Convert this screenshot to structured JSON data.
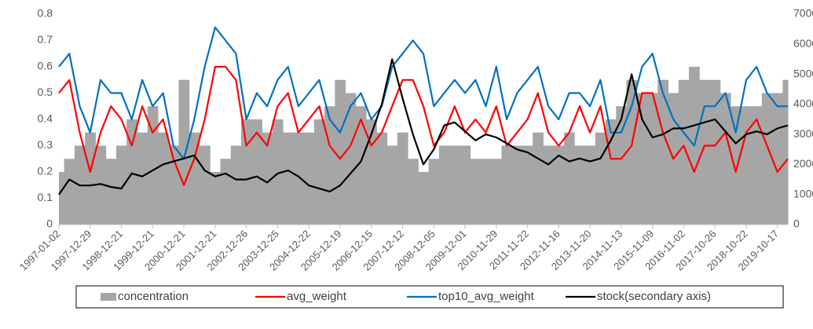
{
  "chart_data": {
    "type": "line",
    "categories": [
      "1997-01-02",
      null,
      null,
      "1997-12-29",
      null,
      null,
      "1998-12-21",
      null,
      null,
      "1999-12-21",
      null,
      null,
      "2000-12-21",
      null,
      null,
      "2001-12-21",
      null,
      null,
      "2002-12-26",
      null,
      null,
      "2003-12-25",
      null,
      null,
      "2004-12-22",
      null,
      null,
      "2005-12-19",
      null,
      null,
      "2006-12-15",
      null,
      null,
      "2007-12-12",
      null,
      null,
      "2008-12-05",
      null,
      null,
      "2009-12-01",
      null,
      null,
      "2010-11-29",
      null,
      null,
      "2011-11-22",
      null,
      null,
      "2012-11-16",
      null,
      null,
      "2013-11-20",
      null,
      null,
      "2014-11-13",
      null,
      null,
      "2015-11-09",
      null,
      null,
      "2016-11-02",
      null,
      null,
      "2017-10-26",
      null,
      null,
      "2018-10-22",
      null,
      null,
      "2019-10-17",
      null
    ],
    "series": [
      {
        "name": "concentration",
        "type": "bar",
        "color": "#a6a6a6",
        "values": [
          0.2,
          0.25,
          0.3,
          0.35,
          0.3,
          0.25,
          0.3,
          0.4,
          0.35,
          0.45,
          0.35,
          0.3,
          0.55,
          0.35,
          0.3,
          0.2,
          0.25,
          0.3,
          0.4,
          0.4,
          0.35,
          0.4,
          0.35,
          0.35,
          0.35,
          0.4,
          0.45,
          0.55,
          0.5,
          0.45,
          0.4,
          0.35,
          0.3,
          0.35,
          0.25,
          0.2,
          0.25,
          0.3,
          0.3,
          0.3,
          0.25,
          0.25,
          0.25,
          0.3,
          0.3,
          0.3,
          0.35,
          0.3,
          0.3,
          0.35,
          0.3,
          0.3,
          0.35,
          0.4,
          0.45,
          0.55,
          0.5,
          0.5,
          0.55,
          0.5,
          0.55,
          0.6,
          0.55,
          0.55,
          0.5,
          0.45,
          0.45,
          0.45,
          0.5,
          0.5,
          0.55
        ]
      },
      {
        "name": "avg_weight",
        "color": "#ff0000",
        "values": [
          0.5,
          0.55,
          0.35,
          0.2,
          0.35,
          0.45,
          0.4,
          0.3,
          0.45,
          0.35,
          0.4,
          0.25,
          0.15,
          0.25,
          0.4,
          0.6,
          0.6,
          0.55,
          0.3,
          0.35,
          0.3,
          0.45,
          0.5,
          0.35,
          0.4,
          0.45,
          0.3,
          0.25,
          0.3,
          0.4,
          0.3,
          0.35,
          0.45,
          0.55,
          0.55,
          0.45,
          0.3,
          0.35,
          0.45,
          0.35,
          0.4,
          0.35,
          0.45,
          0.3,
          0.35,
          0.4,
          0.5,
          0.35,
          0.3,
          0.35,
          0.45,
          0.35,
          0.45,
          0.25,
          0.25,
          0.3,
          0.5,
          0.5,
          0.35,
          0.25,
          0.3,
          0.2,
          0.3,
          0.3,
          0.35,
          0.2,
          0.35,
          0.4,
          0.3,
          0.2,
          0.25
        ]
      },
      {
        "name": "top10_avg_weight",
        "color": "#0070c0",
        "values": [
          0.6,
          0.65,
          0.45,
          0.35,
          0.55,
          0.5,
          0.5,
          0.4,
          0.55,
          0.45,
          0.5,
          0.3,
          0.25,
          0.4,
          0.6,
          0.75,
          0.7,
          0.65,
          0.4,
          0.5,
          0.45,
          0.55,
          0.6,
          0.45,
          0.5,
          0.55,
          0.4,
          0.35,
          0.45,
          0.5,
          0.4,
          0.45,
          0.6,
          0.65,
          0.7,
          0.65,
          0.45,
          0.5,
          0.55,
          0.5,
          0.55,
          0.45,
          0.6,
          0.4,
          0.5,
          0.55,
          0.6,
          0.45,
          0.4,
          0.5,
          0.5,
          0.45,
          0.55,
          0.35,
          0.35,
          0.45,
          0.6,
          0.65,
          0.5,
          0.4,
          0.35,
          0.3,
          0.45,
          0.45,
          0.5,
          0.35,
          0.55,
          0.6,
          0.5,
          0.45,
          0.45
        ]
      },
      {
        "name": "stock(secondary axis)",
        "color": "#000000",
        "axis": "y2",
        "values": [
          1000,
          1500,
          1300,
          1300,
          1350,
          1250,
          1200,
          1700,
          1600,
          1800,
          2000,
          2100,
          2200,
          2300,
          1800,
          1600,
          1700,
          1500,
          1500,
          1600,
          1400,
          1700,
          1800,
          1600,
          1300,
          1200,
          1100,
          1300,
          1700,
          2100,
          3000,
          4000,
          5500,
          4200,
          3000,
          2000,
          2500,
          3300,
          3400,
          3100,
          2800,
          3000,
          2900,
          2700,
          2500,
          2400,
          2200,
          2000,
          2300,
          2100,
          2200,
          2100,
          2200,
          2800,
          3500,
          5000,
          3500,
          2900,
          3000,
          3200,
          3200,
          3300,
          3400,
          3500,
          3100,
          2700,
          3000,
          3100,
          3000,
          3200,
          3300
        ]
      }
    ],
    "ylim": [
      0,
      0.8
    ],
    "yticks": [
      0,
      0.1,
      0.2,
      0.3,
      0.4,
      0.5,
      0.6,
      0.7,
      0.8
    ],
    "y2lim": [
      0,
      7000
    ],
    "y2ticks": [
      0,
      1000,
      2000,
      3000,
      4000,
      5000,
      6000,
      7000
    ],
    "legend": "bottom"
  }
}
